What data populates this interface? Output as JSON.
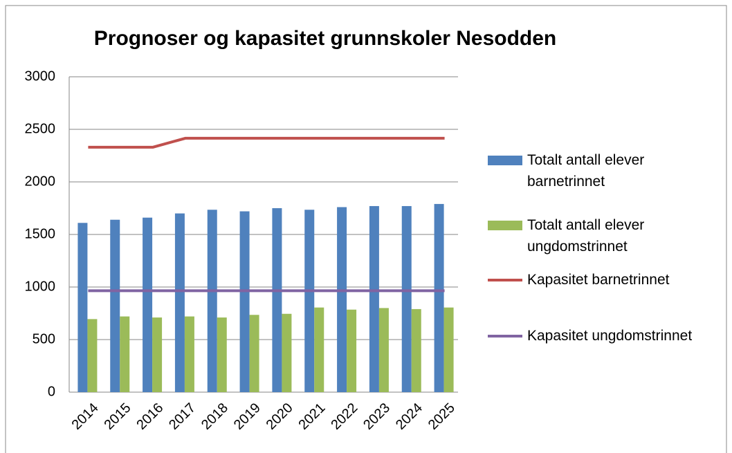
{
  "chart_data": {
    "type": "bar",
    "title": "Prognoser og kapasitet grunnskoler Nesodden",
    "categories": [
      "2014",
      "2015",
      "2016",
      "2017",
      "2018",
      "2019",
      "2020",
      "2021",
      "2022",
      "2023",
      "2024",
      "2025"
    ],
    "series": [
      {
        "name": "Totalt antall elever barnetrinnet",
        "type": "bar",
        "color": "#4f81bd",
        "values": [
          1610,
          1640,
          1660,
          1700,
          1735,
          1720,
          1750,
          1735,
          1760,
          1770,
          1770,
          1790
        ]
      },
      {
        "name": "Totalt antall elever ungdomstrinnet",
        "type": "bar",
        "color": "#9bbb59",
        "values": [
          695,
          720,
          710,
          720,
          710,
          735,
          745,
          805,
          785,
          800,
          790,
          805
        ]
      },
      {
        "name": "Kapasitet barnetrinnet",
        "type": "line",
        "color": "#c0504d",
        "values": [
          2330,
          2330,
          2330,
          2415,
          2415,
          2415,
          2415,
          2415,
          2415,
          2415,
          2415,
          2415
        ]
      },
      {
        "name": "Kapasitet ungdomstrinnet",
        "type": "line",
        "color": "#8064a2",
        "values": [
          965,
          965,
          965,
          965,
          965,
          965,
          965,
          965,
          965,
          965,
          965,
          965
        ]
      }
    ],
    "ylim": [
      0,
      3000
    ],
    "yticks": [
      0,
      500,
      1000,
      1500,
      2000,
      2500,
      3000
    ],
    "grid": true,
    "legend": "right"
  }
}
